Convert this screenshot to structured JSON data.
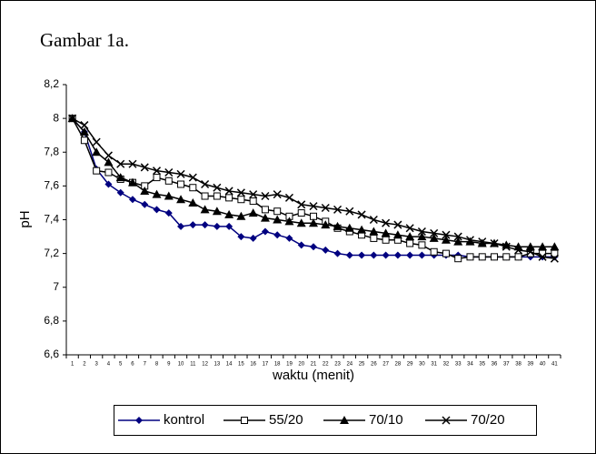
{
  "chart_data": {
    "type": "line",
    "title": "Gambar 1a.",
    "y_label": "pH",
    "x_label": "waktu (menit)",
    "categories": [
      "1",
      "2",
      "3",
      "4",
      "5",
      "6",
      "7",
      "8",
      "9",
      "10",
      "11",
      "12",
      "13",
      "14",
      "15",
      "16",
      "17",
      "18",
      "19",
      "20",
      "21",
      "22",
      "23",
      "24",
      "25",
      "26",
      "27",
      "28",
      "29",
      "30",
      "31",
      "32",
      "33",
      "34",
      "35",
      "36",
      "37",
      "38",
      "39",
      "40",
      "41"
    ],
    "ylim": [
      6.6,
      8.2
    ],
    "yticks": [
      {
        "value": 6.6,
        "label": "6,6"
      },
      {
        "value": 6.8,
        "label": "6,8"
      },
      7,
      {
        "value": 7.2,
        "label": "7,2"
      },
      {
        "value": 7.4,
        "label": "7,4"
      },
      {
        "value": 7.6,
        "label": "7,6"
      },
      {
        "value": 7.8,
        "label": "7,8"
      },
      8,
      {
        "value": 8.2,
        "label": "8,2"
      }
    ],
    "legend": "bottom",
    "series": [
      {
        "name": "kontrol",
        "color": "#000080",
        "marker": "diamond",
        "values": [
          8.0,
          7.92,
          7.7,
          7.61,
          7.56,
          7.52,
          7.49,
          7.46,
          7.44,
          7.36,
          7.37,
          7.37,
          7.36,
          7.36,
          7.3,
          7.29,
          7.33,
          7.31,
          7.29,
          7.25,
          7.24,
          7.22,
          7.2,
          7.19,
          7.19,
          7.19,
          7.19,
          7.19,
          7.19,
          7.19,
          7.19,
          7.19,
          7.19,
          7.18,
          7.18,
          7.18,
          7.18,
          7.18,
          7.18,
          7.18,
          7.18
        ]
      },
      {
        "name": "55/20",
        "color": "#000000",
        "marker": "square",
        "values": [
          8.0,
          7.87,
          7.69,
          7.68,
          7.64,
          7.62,
          7.6,
          7.65,
          7.63,
          7.61,
          7.59,
          7.54,
          7.54,
          7.53,
          7.52,
          7.51,
          7.46,
          7.45,
          7.42,
          7.44,
          7.42,
          7.39,
          7.35,
          7.33,
          7.31,
          7.29,
          7.28,
          7.28,
          7.26,
          7.25,
          7.21,
          7.2,
          7.17,
          7.18,
          7.18,
          7.18,
          7.18,
          7.18,
          7.2,
          7.2,
          7.2
        ]
      },
      {
        "name": "70/10",
        "color": "#000000",
        "marker": "triangle",
        "values": [
          8.0,
          7.92,
          7.8,
          7.74,
          7.65,
          7.62,
          7.57,
          7.55,
          7.54,
          7.52,
          7.5,
          7.46,
          7.45,
          7.43,
          7.42,
          7.44,
          7.41,
          7.4,
          7.39,
          7.38,
          7.38,
          7.37,
          7.36,
          7.35,
          7.34,
          7.33,
          7.32,
          7.31,
          7.3,
          7.3,
          7.29,
          7.28,
          7.27,
          7.27,
          7.26,
          7.26,
          7.25,
          7.24,
          7.24,
          7.24,
          7.24
        ]
      },
      {
        "name": "70/20",
        "color": "#000000",
        "marker": "x",
        "values": [
          8.0,
          7.96,
          7.86,
          7.78,
          7.73,
          7.73,
          7.71,
          7.69,
          7.68,
          7.67,
          7.65,
          7.61,
          7.59,
          7.57,
          7.56,
          7.55,
          7.54,
          7.55,
          7.53,
          7.49,
          7.48,
          7.47,
          7.46,
          7.45,
          7.43,
          7.4,
          7.38,
          7.37,
          7.35,
          7.33,
          7.32,
          7.31,
          7.3,
          7.28,
          7.27,
          7.26,
          7.24,
          7.22,
          7.21,
          7.18,
          7.17
        ]
      }
    ]
  }
}
